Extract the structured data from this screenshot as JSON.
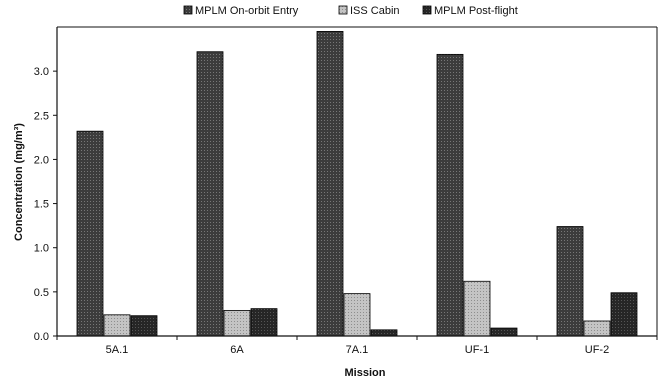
{
  "chart_data": {
    "type": "bar",
    "title": "",
    "xlabel": "Mission",
    "ylabel": "Concentration (mg/m³)",
    "categories": [
      "5A.1",
      "6A",
      "7A.1",
      "UF-1",
      "UF-2"
    ],
    "ylim": [
      0,
      3.5
    ],
    "yticks": [
      "0.0",
      "0.5",
      "1.0",
      "1.5",
      "2.0",
      "2.5",
      "3.0"
    ],
    "grid": false,
    "legend_position": "top",
    "series": [
      {
        "name": "MPLM On-orbit Entry",
        "color": "#4a4a4a",
        "values": [
          2.32,
          3.22,
          3.45,
          3.19,
          1.24
        ]
      },
      {
        "name": "ISS Cabin",
        "color": "#b8b8b8",
        "values": [
          0.24,
          0.29,
          0.48,
          0.62,
          0.17
        ]
      },
      {
        "name": "MPLM Post-flight",
        "color": "#2e2e2e",
        "values": [
          0.23,
          0.31,
          0.07,
          0.09,
          0.49
        ]
      }
    ]
  }
}
